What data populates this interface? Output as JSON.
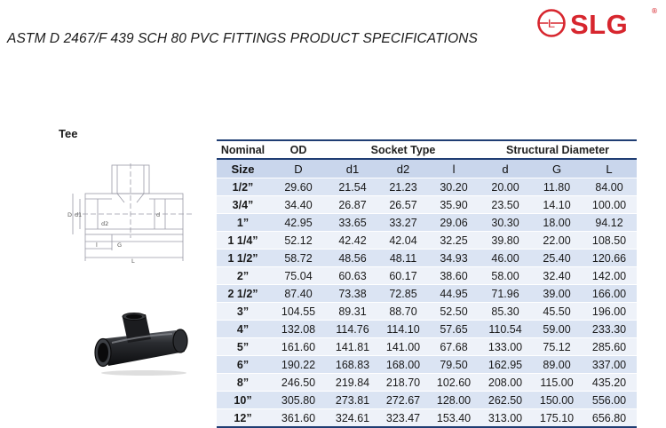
{
  "title": "ASTM D 2467/F 439 SCH 80 PVC FITTINGS PRODUCT SPECIFICATIONS",
  "logo": {
    "text": "SLG",
    "registered_mark": "®",
    "emblem_letter": "L",
    "color": "#d7262e"
  },
  "section_label": "Tee",
  "drawing_labels": {
    "outer_diameter": "D",
    "socket_d1": "d1",
    "socket_d2": "d2",
    "bore_d": "d",
    "socket_l": "l",
    "gap_g": "G",
    "length_l": "L"
  },
  "table": {
    "group_headers": {
      "nominal": "Nominal",
      "od": "OD",
      "socket_type": "Socket Type",
      "structural_diameter": "Structural Diameter"
    },
    "columns": [
      "Size",
      "D",
      "d1",
      "d2",
      "l",
      "d",
      "G",
      "L"
    ],
    "rows": [
      [
        "1/2”",
        "29.60",
        "21.54",
        "21.23",
        "30.20",
        "20.00",
        "11.80",
        "84.00"
      ],
      [
        "3/4”",
        "34.40",
        "26.87",
        "26.57",
        "35.90",
        "23.50",
        "14.10",
        "100.00"
      ],
      [
        "1”",
        "42.95",
        "33.65",
        "33.27",
        "29.06",
        "30.30",
        "18.00",
        "94.12"
      ],
      [
        "1 1/4”",
        "52.12",
        "42.42",
        "42.04",
        "32.25",
        "39.80",
        "22.00",
        "108.50"
      ],
      [
        "1 1/2”",
        "58.72",
        "48.56",
        "48.11",
        "34.93",
        "46.00",
        "25.40",
        "120.66"
      ],
      [
        "2”",
        "75.04",
        "60.63",
        "60.17",
        "38.60",
        "58.00",
        "32.40",
        "142.00"
      ],
      [
        "2 1/2”",
        "87.40",
        "73.38",
        "72.85",
        "44.95",
        "71.96",
        "39.00",
        "166.00"
      ],
      [
        "3”",
        "104.55",
        "89.31",
        "88.70",
        "52.50",
        "85.30",
        "45.50",
        "196.00"
      ],
      [
        "4”",
        "132.08",
        "114.76",
        "114.10",
        "57.65",
        "110.54",
        "59.00",
        "233.30"
      ],
      [
        "5”",
        "161.60",
        "141.81",
        "141.00",
        "67.68",
        "133.00",
        "75.12",
        "285.60"
      ],
      [
        "6”",
        "190.22",
        "168.83",
        "168.00",
        "79.50",
        "162.95",
        "89.00",
        "337.00"
      ],
      [
        "8”",
        "246.50",
        "219.84",
        "218.70",
        "102.60",
        "208.00",
        "115.00",
        "435.20"
      ],
      [
        "10”",
        "305.80",
        "273.81",
        "272.67",
        "128.00",
        "262.50",
        "150.00",
        "556.00"
      ],
      [
        "12”",
        "361.60",
        "324.61",
        "323.47",
        "153.40",
        "313.00",
        "175.10",
        "656.80"
      ]
    ]
  },
  "colors": {
    "header_rule": "#1f3d73",
    "row_dark": "#dbe4f3",
    "row_light": "#eef2f9",
    "subheader": "#c9d6ec",
    "brand_red": "#d7262e"
  }
}
